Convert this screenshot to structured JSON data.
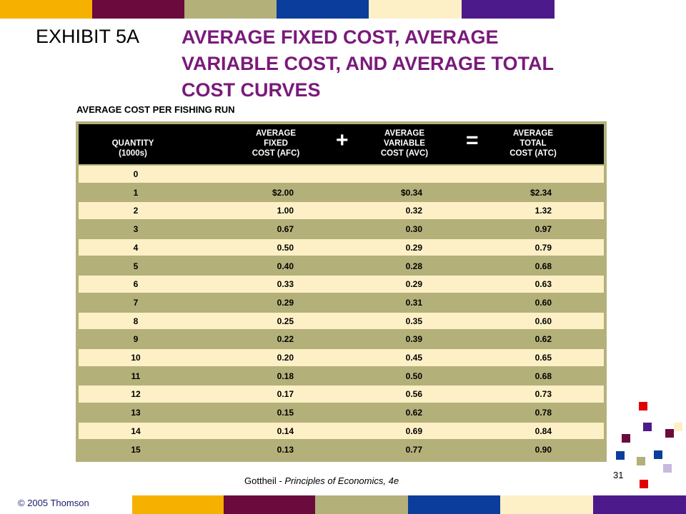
{
  "header": {
    "exhibit": "EXHIBIT 5A",
    "title_lines": [
      "AVERAGE FIXED COST, AVERAGE",
      "VARIABLE COST, AND AVERAGE TOTAL",
      "COST CURVES"
    ]
  },
  "table": {
    "caption": "AVERAGE COST PER FISHING RUN",
    "columns": [
      [
        "QUANTITY",
        "(1000s)"
      ],
      [
        "AVERAGE",
        "FIXED",
        "COST (AFC)"
      ],
      [
        "AVERAGE",
        "VARIABLE",
        "COST (AVC)"
      ],
      [
        "AVERAGE",
        "TOTAL",
        "COST (ATC)"
      ]
    ],
    "operators": [
      "+",
      "="
    ],
    "rows": [
      [
        "0"
      ],
      [
        "1",
        "$2.00",
        "$0.34",
        "$2.34"
      ],
      [
        "2",
        "1.00",
        "0.32",
        "1.32"
      ],
      [
        "3",
        "0.67",
        "0.30",
        "0.97"
      ],
      [
        "4",
        "0.50",
        "0.29",
        "0.79"
      ],
      [
        "5",
        "0.40",
        "0.28",
        "0.68"
      ],
      [
        "6",
        "0.33",
        "0.29",
        "0.63"
      ],
      [
        "7",
        "0.29",
        "0.31",
        "0.60"
      ],
      [
        "8",
        "0.25",
        "0.35",
        "0.60"
      ],
      [
        "9",
        "0.22",
        "0.39",
        "0.62"
      ],
      [
        "10",
        "0.20",
        "0.45",
        "0.65"
      ],
      [
        "11",
        "0.18",
        "0.50",
        "0.68"
      ],
      [
        "12",
        "0.17",
        "0.56",
        "0.73"
      ],
      [
        "13",
        "0.15",
        "0.62",
        "0.78"
      ],
      [
        "14",
        "0.14",
        "0.69",
        "0.84"
      ],
      [
        "15",
        "0.13",
        "0.77",
        "0.90"
      ]
    ]
  },
  "footer": {
    "author": "Gottheil -",
    "book": "Principles of Economics, 4e",
    "copyright": "© 2005 Thomson",
    "page": "31"
  }
}
